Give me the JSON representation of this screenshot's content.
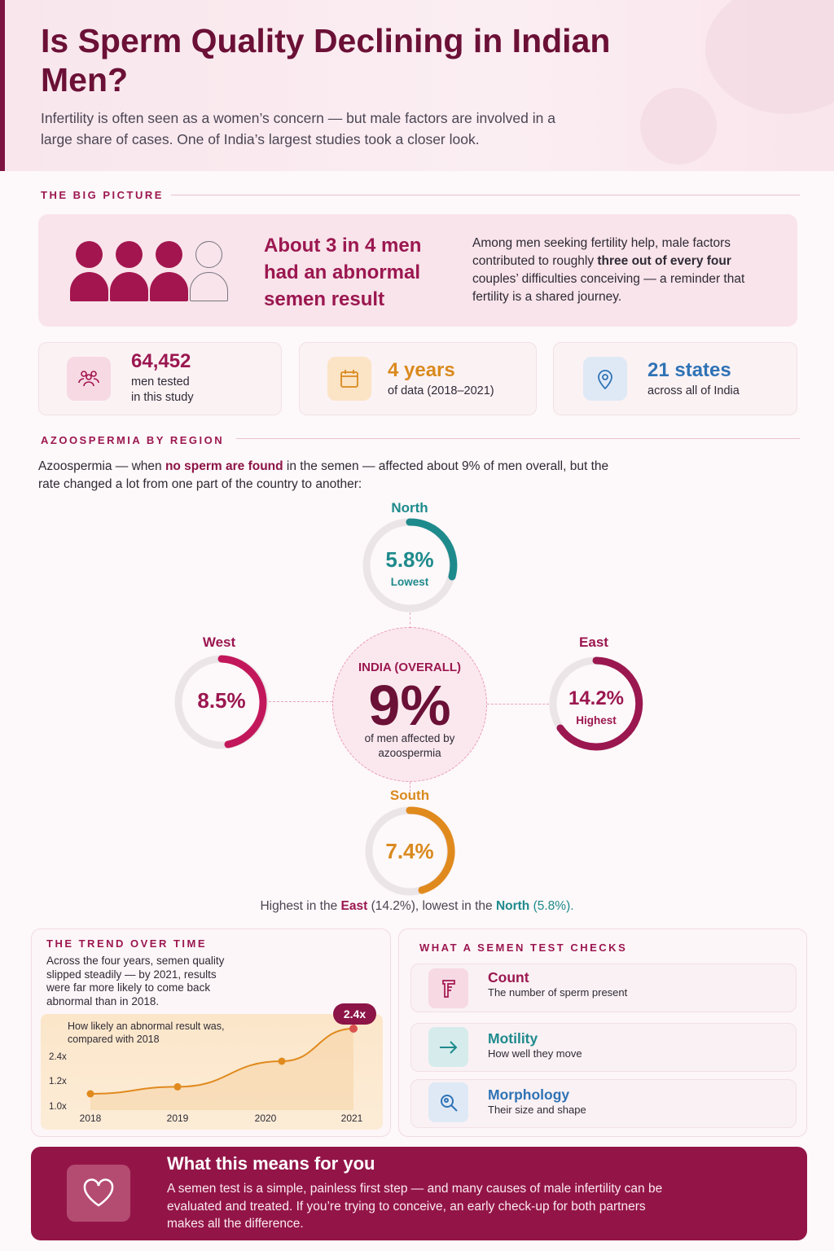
{
  "header": {
    "title": "Is Sperm Quality Declining in Indian Men?",
    "subtitle": "Infertility is often seen as a women’s concern — but male factors are involved in a large share of cases. One of India’s largest studies took a closer look."
  },
  "big_picture": {
    "section_label": "THE BIG PICTURE",
    "icon": "people-3-of-4-icon",
    "filled_people": 3,
    "total_people": 4,
    "headline": "About 3 in 4 men had an abnormal semen result",
    "desc_before": "Among men seeking fertility help, male factors contributed to roughly ",
    "desc_bold": "three out of every four",
    "desc_after": " couples’ difficulties conceiving — a reminder that fertility is a shared journey."
  },
  "stats": [
    {
      "icon": "people-icon",
      "value": "64,452",
      "label1": "men tested",
      "label2": "in this study",
      "color": "#9b1750"
    },
    {
      "icon": "calendar-icon",
      "value": "4 years",
      "label1": "of data (2018–2021)",
      "color": "#d98a1e"
    },
    {
      "icon": "location-pin-icon",
      "value": "21 states",
      "label1": "across all of India",
      "color": "#2f73b5"
    }
  ],
  "azoospermia": {
    "section_label": "AZOOSPERMIA BY REGION",
    "intro_before": "Azoospermia — when ",
    "intro_bold": "no sperm are found",
    "intro_after": " in the semen — affected about 9% of men overall, but the rate changed a lot from one part of the country to another:",
    "center": {
      "title": "INDIA (OVERALL)",
      "value": "9%",
      "sub": "of men affected by azoospermia"
    },
    "regions": {
      "north": {
        "name": "North",
        "value": "5.8%",
        "sub": "Lowest",
        "color": "#1e8a8c"
      },
      "west": {
        "name": "West",
        "value": "8.5%",
        "sub": "",
        "color": "#c2185b"
      },
      "east": {
        "name": "East",
        "value": "14.2%",
        "sub": "Highest",
        "color": "#9b1750"
      },
      "south": {
        "name": "South",
        "value": "7.4%",
        "sub": "",
        "color": "#e08a1e"
      }
    },
    "summary": {
      "p1": "Highest in the ",
      "east": "East",
      "p2": " (14.2%), lowest in the ",
      "north": "North",
      "p3": " (5.8%)."
    }
  },
  "trend": {
    "section_label": "THE TREND OVER TIME",
    "text": "Across the four years, semen quality slipped steadily — by 2021, results were far more likely to come back abnormal than in 2018.",
    "badge": "2.4x"
  },
  "chart_data": {
    "type": "line",
    "title": "How likely an abnormal result was, compared with 2018",
    "x": [
      "2018",
      "2019",
      "2020",
      "2021"
    ],
    "y_ticks": [
      "2.4x",
      "1.2x",
      "1.0x"
    ],
    "series": [
      {
        "values": [
          1.0,
          1.15,
          1.7,
          2.4
        ]
      }
    ],
    "ylim": [
      1.0,
      2.4
    ],
    "grid": false,
    "color": "#e08a1e"
  },
  "tests": {
    "section_label": "WHAT A SEMEN TEST CHECKS",
    "items": [
      {
        "icon": "sample-cup-icon",
        "name": "Count",
        "desc": "The number of sperm present",
        "color": "#9b1750"
      },
      {
        "icon": "arrow-right-icon",
        "name": "Motility",
        "desc": "How well they move",
        "color": "#1e8a8c"
      },
      {
        "icon": "magnifier-icon",
        "name": "Morphology",
        "desc": "Their size and shape",
        "color": "#2f73b5"
      }
    ]
  },
  "footer": {
    "icon": "heart-icon",
    "title": "What this means for you",
    "text": "A semen test is a simple, painless first step — and many causes of male infertility can be evaluated and treated. If you’re trying to conceive, an early check-up for both partners makes all the difference."
  }
}
